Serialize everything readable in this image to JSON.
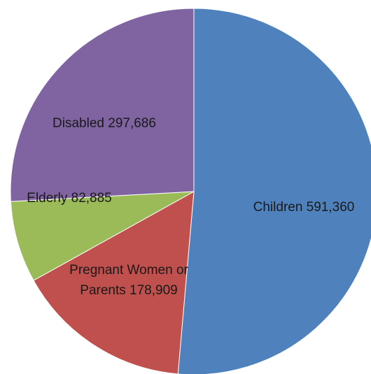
{
  "chart_data": {
    "type": "pie",
    "slices": [
      {
        "category": "Children",
        "value": 591360,
        "label": "Children 591,360",
        "color": "#4f81bd"
      },
      {
        "category": "Pregnant Women or Parents",
        "value": 178909,
        "label_lines": [
          "Pregnant Women or",
          "Parents 178,909"
        ],
        "color": "#c0504d"
      },
      {
        "category": "Elderly",
        "value": 82885,
        "label": "Elderly 82,885",
        "color": "#9bbb59"
      },
      {
        "category": "Disabled",
        "value": 297686,
        "label": "Disabled 297,686",
        "color": "#8064a2"
      }
    ],
    "start": "12 o'clock",
    "direction": "clockwise",
    "legend": "none"
  }
}
